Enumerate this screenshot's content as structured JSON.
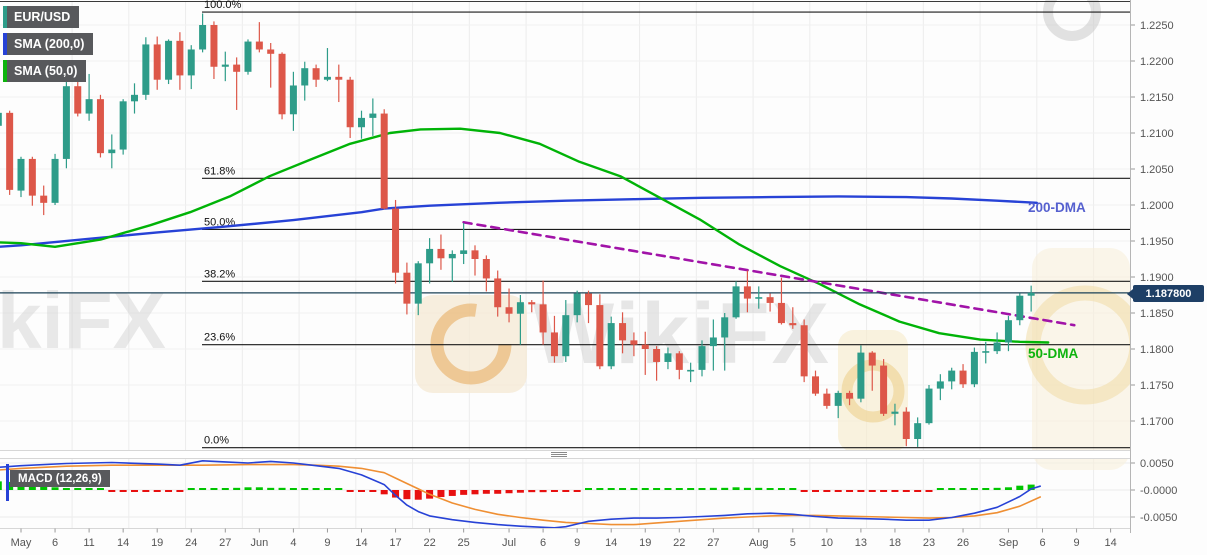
{
  "legend": {
    "symbol": "EUR/USD",
    "sma200": "SMA (200,0)",
    "sma50": "SMA (50,0)",
    "macd": "MACD (12,26,9)"
  },
  "overlay_labels": {
    "dma200": "200-DMA",
    "dma50": "50-DMA"
  },
  "price_badge": "1.187800",
  "watermark_text": "WikiFX",
  "chart_data": {
    "type": "candlestick",
    "title": "EUR/USD daily chart with SMA(200), SMA(50), Fibonacci retracement and MACD(12,26,9)",
    "price_axis_ticks": [
      1.225,
      1.22,
      1.215,
      1.21,
      1.205,
      1.2,
      1.195,
      1.19,
      1.185,
      1.18,
      1.175,
      1.17
    ],
    "macd_axis_ticks": [
      "0.0050",
      "-0.0000",
      "-0.0050"
    ],
    "macd_axis_values": [
      0.005,
      0.0,
      -0.005
    ],
    "current_price": 1.1878,
    "fib_levels": [
      {
        "label": "100.0%",
        "price": 1.2268
      },
      {
        "label": "61.8%",
        "price": 1.2037
      },
      {
        "label": "50.0%",
        "price": 1.1966
      },
      {
        "label": "38.2%",
        "price": 1.1894
      },
      {
        "label": "23.6%",
        "price": 1.1806
      },
      {
        "label": "0.0%",
        "price": 1.1663
      }
    ],
    "date_ticks": [
      {
        "label": "May",
        "i": 0
      },
      {
        "label": "6",
        "i": 3
      },
      {
        "label": "11",
        "i": 6
      },
      {
        "label": "14",
        "i": 9
      },
      {
        "label": "19",
        "i": 12
      },
      {
        "label": "24",
        "i": 15
      },
      {
        "label": "27",
        "i": 18
      },
      {
        "label": "Jun",
        "i": 21
      },
      {
        "label": "4",
        "i": 24
      },
      {
        "label": "9",
        "i": 27
      },
      {
        "label": "14",
        "i": 30
      },
      {
        "label": "17",
        "i": 33
      },
      {
        "label": "22",
        "i": 36
      },
      {
        "label": "25",
        "i": 39
      },
      {
        "label": "Jul",
        "i": 43
      },
      {
        "label": "6",
        "i": 46
      },
      {
        "label": "9",
        "i": 49
      },
      {
        "label": "14",
        "i": 52
      },
      {
        "label": "19",
        "i": 55
      },
      {
        "label": "22",
        "i": 58
      },
      {
        "label": "27",
        "i": 61
      },
      {
        "label": "Aug",
        "i": 65
      },
      {
        "label": "5",
        "i": 68
      },
      {
        "label": "10",
        "i": 71
      },
      {
        "label": "13",
        "i": 74
      },
      {
        "label": "18",
        "i": 77
      },
      {
        "label": "23",
        "i": 80
      },
      {
        "label": "26",
        "i": 83
      },
      {
        "label": "Sep",
        "i": 87
      },
      {
        "label": "6",
        "i": 90
      },
      {
        "label": "9",
        "i": 93
      },
      {
        "label": "14",
        "i": 96
      }
    ],
    "candles_start_index": -2,
    "candles": [
      [
        1.211,
        1.215,
        1.2104,
        1.2128
      ],
      [
        1.2128,
        1.2131,
        1.2014,
        1.2021
      ],
      [
        1.202,
        1.2067,
        1.2011,
        1.2064
      ],
      [
        1.2064,
        1.2067,
        1.1999,
        1.2013
      ],
      [
        1.2013,
        1.2027,
        1.1986,
        1.2003
      ],
      [
        1.2003,
        1.2071,
        1.2,
        1.2064
      ],
      [
        1.2064,
        1.2171,
        1.2051,
        1.2165
      ],
      [
        1.2165,
        1.2177,
        1.2123,
        1.2127
      ],
      [
        1.2127,
        1.2182,
        1.2117,
        1.2147
      ],
      [
        1.2147,
        1.2153,
        1.2066,
        1.2072
      ],
      [
        1.2072,
        1.2098,
        1.2051,
        1.2077
      ],
      [
        1.2077,
        1.2147,
        1.207,
        1.2144
      ],
      [
        1.2144,
        1.2169,
        1.2127,
        1.2153
      ],
      [
        1.2153,
        1.2233,
        1.2146,
        1.2223
      ],
      [
        1.2223,
        1.2234,
        1.216,
        1.2174
      ],
      [
        1.2174,
        1.223,
        1.2168,
        1.2228
      ],
      [
        1.2228,
        1.224,
        1.216,
        1.218
      ],
      [
        1.218,
        1.2222,
        1.2161,
        1.2216
      ],
      [
        1.2216,
        1.2266,
        1.2212,
        1.225
      ],
      [
        1.225,
        1.2255,
        1.2175,
        1.2192
      ],
      [
        1.2192,
        1.2213,
        1.2172,
        1.2195
      ],
      [
        1.2195,
        1.2205,
        1.2132,
        1.2185
      ],
      [
        1.2185,
        1.223,
        1.2181,
        1.2227
      ],
      [
        1.2227,
        1.2254,
        1.2212,
        1.2216
      ],
      [
        1.2216,
        1.2225,
        1.2163,
        1.221
      ],
      [
        1.221,
        1.2212,
        1.2119,
        1.2126
      ],
      [
        1.2126,
        1.2185,
        1.2103,
        1.2166
      ],
      [
        1.2166,
        1.2199,
        1.2145,
        1.219
      ],
      [
        1.219,
        1.2195,
        1.2164,
        1.2174
      ],
      [
        1.2174,
        1.2218,
        1.2172,
        1.2178
      ],
      [
        1.2178,
        1.2195,
        1.2143,
        1.2174
      ],
      [
        1.2174,
        1.2178,
        1.2093,
        1.2108
      ],
      [
        1.2108,
        1.2131,
        1.2092,
        1.2121
      ],
      [
        1.2121,
        1.2148,
        1.2096,
        1.2127
      ],
      [
        1.2127,
        1.2133,
        1.1994,
        1.1995
      ],
      [
        1.1995,
        1.2007,
        1.1891,
        1.1906
      ],
      [
        1.1906,
        1.192,
        1.1848,
        1.1863
      ],
      [
        1.1863,
        1.1922,
        1.1847,
        1.1919
      ],
      [
        1.1919,
        1.1954,
        1.1891,
        1.1939
      ],
      [
        1.1939,
        1.1959,
        1.191,
        1.1926
      ],
      [
        1.1926,
        1.1937,
        1.1893,
        1.1932
      ],
      [
        1.1932,
        1.1975,
        1.1918,
        1.1937
      ],
      [
        1.1937,
        1.1944,
        1.1902,
        1.1925
      ],
      [
        1.1925,
        1.193,
        1.188,
        1.1898
      ],
      [
        1.1898,
        1.1909,
        1.1845,
        1.1858
      ],
      [
        1.1858,
        1.1884,
        1.1837,
        1.1849
      ],
      [
        1.1849,
        1.1875,
        1.1806,
        1.1865
      ],
      [
        1.1865,
        1.1868,
        1.1851,
        1.1862
      ],
      [
        1.1862,
        1.1895,
        1.1806,
        1.1823
      ],
      [
        1.1823,
        1.1846,
        1.1781,
        1.179
      ],
      [
        1.179,
        1.1868,
        1.1782,
        1.1847
      ],
      [
        1.1847,
        1.1881,
        1.1837,
        1.1877
      ],
      [
        1.1877,
        1.1881,
        1.1836,
        1.1861
      ],
      [
        1.1861,
        1.1876,
        1.1772,
        1.1776
      ],
      [
        1.1776,
        1.1845,
        1.1772,
        1.1836
      ],
      [
        1.1836,
        1.1851,
        1.1794,
        1.1812
      ],
      [
        1.1812,
        1.1823,
        1.179,
        1.1806
      ],
      [
        1.1806,
        1.1824,
        1.1764,
        1.18
      ],
      [
        1.18,
        1.1804,
        1.1756,
        1.1782
      ],
      [
        1.1782,
        1.1802,
        1.1772,
        1.1794
      ],
      [
        1.1794,
        1.1797,
        1.1758,
        1.1771
      ],
      [
        1.1771,
        1.1781,
        1.1754,
        1.1771
      ],
      [
        1.1771,
        1.1812,
        1.1762,
        1.1804
      ],
      [
        1.1804,
        1.1841,
        1.177,
        1.1816
      ],
      [
        1.1816,
        1.185,
        1.177,
        1.1844
      ],
      [
        1.1844,
        1.1894,
        1.1842,
        1.1887
      ],
      [
        1.1887,
        1.1909,
        1.1851,
        1.187
      ],
      [
        1.187,
        1.1887,
        1.1856,
        1.1872
      ],
      [
        1.1872,
        1.1877,
        1.1852,
        1.1864
      ],
      [
        1.1864,
        1.1899,
        1.1834,
        1.1836
      ],
      [
        1.1836,
        1.1858,
        1.1828,
        1.1833
      ],
      [
        1.1833,
        1.1841,
        1.1754,
        1.1762
      ],
      [
        1.1762,
        1.177,
        1.1735,
        1.1738
      ],
      [
        1.1738,
        1.1745,
        1.1717,
        1.1721
      ],
      [
        1.1721,
        1.1742,
        1.1704,
        1.1739
      ],
      [
        1.1739,
        1.1742,
        1.1722,
        1.1731
      ],
      [
        1.1731,
        1.1805,
        1.1726,
        1.1795
      ],
      [
        1.1795,
        1.1797,
        1.1742,
        1.1777
      ],
      [
        1.1777,
        1.1786,
        1.1707,
        1.171
      ],
      [
        1.171,
        1.1724,
        1.1694,
        1.1713
      ],
      [
        1.1713,
        1.1719,
        1.1665,
        1.1675
      ],
      [
        1.1675,
        1.1705,
        1.1664,
        1.1697
      ],
      [
        1.1697,
        1.175,
        1.1695,
        1.1745
      ],
      [
        1.1745,
        1.1765,
        1.1729,
        1.1755
      ],
      [
        1.1755,
        1.1774,
        1.1744,
        1.177
      ],
      [
        1.177,
        1.1779,
        1.1746,
        1.1751
      ],
      [
        1.1751,
        1.1802,
        1.1747,
        1.1796
      ],
      [
        1.1796,
        1.181,
        1.178,
        1.1797
      ],
      [
        1.1797,
        1.1823,
        1.1793,
        1.1809
      ],
      [
        1.1809,
        1.1846,
        1.1797,
        1.184
      ],
      [
        1.184,
        1.1877,
        1.1833,
        1.1874
      ],
      [
        1.1874,
        1.1888,
        1.1852,
        1.1878
      ]
    ],
    "sma50": [
      [
        -2,
        1.1948
      ],
      [
        0,
        1.1947
      ],
      [
        3,
        1.1942
      ],
      [
        7,
        1.1952
      ],
      [
        11.4,
        1.1972
      ],
      [
        14.9,
        1.199
      ],
      [
        18.4,
        1.2012
      ],
      [
        21.9,
        1.204
      ],
      [
        25.5,
        1.2063
      ],
      [
        29,
        1.2085
      ],
      [
        32.5,
        1.21
      ],
      [
        35.2,
        1.2105
      ],
      [
        38.7,
        1.2106
      ],
      [
        42.2,
        1.21
      ],
      [
        45.7,
        1.2085
      ],
      [
        49.2,
        1.206
      ],
      [
        52.8,
        1.204
      ],
      [
        56.3,
        1.201
      ],
      [
        59.8,
        1.198
      ],
      [
        63.3,
        1.1945
      ],
      [
        66.9,
        1.1915
      ],
      [
        70.4,
        1.189
      ],
      [
        73.9,
        1.1862
      ],
      [
        77.4,
        1.1838
      ],
      [
        80.9,
        1.1822
      ],
      [
        84.5,
        1.1813
      ],
      [
        88,
        1.181
      ],
      [
        90.5,
        1.1809
      ]
    ],
    "sma200": [
      [
        -2,
        1.1942
      ],
      [
        0,
        1.1944
      ],
      [
        6,
        1.1953
      ],
      [
        12,
        1.1962
      ],
      [
        18,
        1.197
      ],
      [
        24,
        1.1979
      ],
      [
        30,
        1.199
      ],
      [
        32,
        1.1995
      ],
      [
        36,
        1.1999
      ],
      [
        42,
        1.2003
      ],
      [
        48,
        1.2006
      ],
      [
        54,
        1.2008
      ],
      [
        60,
        1.201
      ],
      [
        66,
        1.2011
      ],
      [
        72,
        1.2012
      ],
      [
        78,
        1.2011
      ],
      [
        82,
        1.2009
      ],
      [
        86,
        1.2006
      ],
      [
        89.5,
        1.2003
      ]
    ],
    "trendline": {
      "from": [
        39,
        1.1976
      ],
      "to": [
        92.8,
        1.1833
      ]
    },
    "macd": {
      "histogram_x10000": [
        16,
        15,
        14,
        12,
        8,
        5,
        3,
        2,
        2,
        1,
        -1,
        -2,
        -2,
        -2,
        -3,
        -2,
        -1,
        1,
        2,
        2,
        3,
        4,
        5,
        5,
        4,
        4,
        3,
        3,
        2,
        2,
        1,
        -1,
        -1,
        -2,
        -8,
        -14,
        -17,
        -18,
        -16,
        -13,
        -11,
        -9,
        -8,
        -7,
        -7,
        -6,
        -5,
        -4,
        -4,
        -3,
        -2,
        -1,
        1,
        2,
        2,
        1,
        1,
        1,
        1,
        2,
        2,
        2,
        3,
        4,
        4,
        5,
        4,
        4,
        3,
        2,
        1,
        -1,
        -2,
        -3,
        -3,
        -3,
        -2,
        -2,
        -3,
        -3,
        -3,
        -2,
        -1,
        1,
        2,
        2,
        3,
        3,
        4,
        5,
        8,
        10
      ],
      "macd_line": [
        [
          -2,
          0.0042
        ],
        [
          0,
          0.0045
        ],
        [
          4,
          0.0049
        ],
        [
          8,
          0.0051
        ],
        [
          12,
          0.0048
        ],
        [
          14,
          0.0046
        ],
        [
          16,
          0.0054
        ],
        [
          18,
          0.0052
        ],
        [
          20,
          0.005
        ],
        [
          22,
          0.0053
        ],
        [
          24,
          0.005
        ],
        [
          26,
          0.0045
        ],
        [
          28,
          0.004
        ],
        [
          30,
          0.0028
        ],
        [
          32,
          0.001
        ],
        [
          33,
          -0.001
        ],
        [
          34,
          -0.0028
        ],
        [
          35,
          -0.004
        ],
        [
          36,
          -0.0048
        ],
        [
          38,
          -0.0055
        ],
        [
          40,
          -0.006
        ],
        [
          42,
          -0.0064
        ],
        [
          44,
          -0.0067
        ],
        [
          46,
          -0.0069
        ],
        [
          47,
          -0.007
        ],
        [
          48,
          -0.0068
        ],
        [
          49,
          -0.0063
        ],
        [
          50,
          -0.0058
        ],
        [
          52,
          -0.0054
        ],
        [
          54,
          -0.0052
        ],
        [
          56,
          -0.0052
        ],
        [
          58,
          -0.0051
        ],
        [
          60,
          -0.0049
        ],
        [
          62,
          -0.0047
        ],
        [
          64,
          -0.0044
        ],
        [
          66,
          -0.0043
        ],
        [
          68,
          -0.0045
        ],
        [
          70,
          -0.0049
        ],
        [
          72,
          -0.0052
        ],
        [
          74,
          -0.0053
        ],
        [
          76,
          -0.0054
        ],
        [
          78,
          -0.0056
        ],
        [
          80,
          -0.0056
        ],
        [
          82,
          -0.0051
        ],
        [
          84,
          -0.0043
        ],
        [
          86,
          -0.0032
        ],
        [
          88,
          -0.0012
        ],
        [
          89,
          0.0002
        ],
        [
          89.8,
          0.0007
        ]
      ],
      "signal_line": [
        [
          -2,
          0.0037
        ],
        [
          0,
          0.004
        ],
        [
          4,
          0.0044
        ],
        [
          8,
          0.0046
        ],
        [
          12,
          0.0046
        ],
        [
          16,
          0.0046
        ],
        [
          20,
          0.0047
        ],
        [
          24,
          0.0047
        ],
        [
          26,
          0.0046
        ],
        [
          28,
          0.0044
        ],
        [
          30,
          0.004
        ],
        [
          32,
          0.0032
        ],
        [
          33,
          0.0022
        ],
        [
          34,
          0.0012
        ],
        [
          35,
          0.0002
        ],
        [
          36,
          -0.0008
        ],
        [
          38,
          -0.0024
        ],
        [
          40,
          -0.0036
        ],
        [
          42,
          -0.0045
        ],
        [
          44,
          -0.0051
        ],
        [
          46,
          -0.0056
        ],
        [
          48,
          -0.006
        ],
        [
          50,
          -0.0062
        ],
        [
          52,
          -0.0064
        ],
        [
          54,
          -0.0064
        ],
        [
          56,
          -0.0061
        ],
        [
          58,
          -0.0058
        ],
        [
          60,
          -0.0055
        ],
        [
          62,
          -0.0052
        ],
        [
          64,
          -0.005
        ],
        [
          66,
          -0.0048
        ],
        [
          68,
          -0.0047
        ],
        [
          70,
          -0.0047
        ],
        [
          72,
          -0.0048
        ],
        [
          74,
          -0.0049
        ],
        [
          76,
          -0.005
        ],
        [
          78,
          -0.0051
        ],
        [
          80,
          -0.0052
        ],
        [
          82,
          -0.0051
        ],
        [
          84,
          -0.0048
        ],
        [
          86,
          -0.0042
        ],
        [
          88,
          -0.003
        ],
        [
          89.8,
          -0.0013
        ]
      ]
    },
    "colors": {
      "up": "#2e9c89",
      "down": "#dd5749",
      "sma50": "#00b307",
      "sma200": "#2742d6",
      "trendline": "#a113a8",
      "price_line": "#1c4257",
      "badge_bg": "#1e3f66",
      "fib_line": "#1a1a1a",
      "macd_line": "#2742d6",
      "signal_line": "#ef8f33",
      "hist_up": "#00c500",
      "hist_down": "#e81010",
      "dma200_label": "#5560cf",
      "dma50_label": "#0db30d"
    }
  }
}
